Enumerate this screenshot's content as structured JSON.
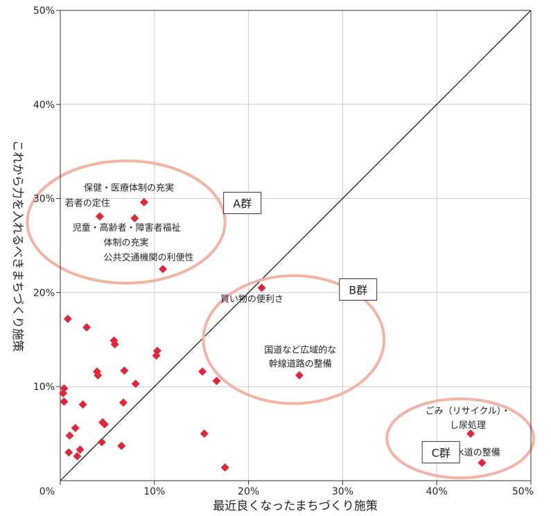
{
  "chart_data": {
    "type": "scatter",
    "xlabel": "最近良くなったまちづくり施策",
    "ylabel": "これから力を入れるべきまちづくり施策",
    "xlim": [
      0,
      50
    ],
    "ylim": [
      0,
      50
    ],
    "x_ticks": [
      {
        "value": 0,
        "label": "0%"
      },
      {
        "value": 10,
        "label": "10%"
      },
      {
        "value": 20,
        "label": "20%"
      },
      {
        "value": 30,
        "label": "30%"
      },
      {
        "value": 40,
        "label": "40%"
      },
      {
        "value": 50,
        "label": "50%"
      }
    ],
    "y_ticks": [
      {
        "value": 10,
        "label": "10%"
      },
      {
        "value": 20,
        "label": "20%"
      },
      {
        "value": 30,
        "label": "30%"
      },
      {
        "value": 40,
        "label": "40%"
      },
      {
        "value": 50,
        "label": "50%"
      }
    ],
    "grid": true,
    "reference_line": "y = x",
    "colors": {
      "marker": "#e0263a",
      "ellipse": "#f4b2a2",
      "grid": "#cccccc",
      "axis": "#333333"
    },
    "points": [
      {
        "x": 8.9,
        "y": 29.6
      },
      {
        "x": 4.2,
        "y": 28.1
      },
      {
        "x": 7.9,
        "y": 27.9
      },
      {
        "x": 10.9,
        "y": 22.5
      },
      {
        "x": 21.4,
        "y": 20.5
      },
      {
        "x": 25.4,
        "y": 11.2
      },
      {
        "x": 43.6,
        "y": 5.0
      },
      {
        "x": 44.8,
        "y": 1.9
      },
      {
        "x": 0.8,
        "y": 17.2
      },
      {
        "x": 2.8,
        "y": 16.3
      },
      {
        "x": 5.7,
        "y": 14.9
      },
      {
        "x": 5.8,
        "y": 14.5
      },
      {
        "x": 10.3,
        "y": 13.8
      },
      {
        "x": 10.2,
        "y": 13.3
      },
      {
        "x": 3.9,
        "y": 11.6
      },
      {
        "x": 4.0,
        "y": 11.2
      },
      {
        "x": 6.8,
        "y": 11.7
      },
      {
        "x": 15.1,
        "y": 11.6
      },
      {
        "x": 16.6,
        "y": 10.6
      },
      {
        "x": 8.0,
        "y": 10.3
      },
      {
        "x": 0.4,
        "y": 9.8
      },
      {
        "x": 0.3,
        "y": 9.3
      },
      {
        "x": 0.4,
        "y": 8.4
      },
      {
        "x": 2.4,
        "y": 8.1
      },
      {
        "x": 6.7,
        "y": 8.3
      },
      {
        "x": 4.5,
        "y": 6.2
      },
      {
        "x": 4.7,
        "y": 6.0
      },
      {
        "x": 1.6,
        "y": 5.6
      },
      {
        "x": 1.0,
        "y": 4.8
      },
      {
        "x": 4.4,
        "y": 4.1
      },
      {
        "x": 6.5,
        "y": 3.7
      },
      {
        "x": 2.1,
        "y": 3.3
      },
      {
        "x": 0.9,
        "y": 3.0
      },
      {
        "x": 1.8,
        "y": 2.6
      },
      {
        "x": 15.3,
        "y": 5.0
      },
      {
        "x": 17.5,
        "y": 1.4
      }
    ],
    "annotations": [
      {
        "text": "保健・医療体制の充実",
        "x": 2.5,
        "y": 30.8,
        "anchor": "start"
      },
      {
        "text": "若者の定住",
        "x": 0.5,
        "y": 29.2,
        "anchor": "start"
      },
      {
        "text": "児童・高齢者・障害者福祉",
        "x": 1.3,
        "y": 26.6,
        "anchor": "start"
      },
      {
        "text": "体制の充実",
        "x": 4.6,
        "y": 25.0,
        "anchor": "start"
      },
      {
        "text": "公共交通機関の利便性",
        "x": 4.6,
        "y": 23.4,
        "anchor": "start"
      },
      {
        "text": "買い物の便利さ",
        "x": 17.0,
        "y": 19.0,
        "anchor": "start"
      },
      {
        "text": "国道など広域的な",
        "x": 25.5,
        "y": 13.6,
        "anchor": "middle"
      },
      {
        "text": "幹線道路の整備",
        "x": 25.5,
        "y": 12.1,
        "anchor": "middle"
      },
      {
        "text": "ごみ（リサイクル）・",
        "x": 43.3,
        "y": 7.1,
        "anchor": "middle"
      },
      {
        "text": "し尿処理",
        "x": 43.3,
        "y": 5.6,
        "anchor": "middle"
      },
      {
        "text": "下水道の整備",
        "x": 41.0,
        "y": 2.7,
        "anchor": "start"
      }
    ],
    "groups": [
      {
        "label": "A群",
        "cx": 7.0,
        "cy": 27.5,
        "rx": 10.5,
        "ry": 6.5,
        "label_x": 17.5,
        "label_y": 28.9
      },
      {
        "label": "B群",
        "cx": 24.8,
        "cy": 15.0,
        "rx": 9.6,
        "ry": 6.8,
        "label_x": 29.8,
        "label_y": 19.7
      },
      {
        "label": "C群",
        "cx": 42.5,
        "cy": 4.5,
        "rx": 7.8,
        "ry": 4.2,
        "label_x": 38.6,
        "label_y": 2.4
      }
    ]
  }
}
